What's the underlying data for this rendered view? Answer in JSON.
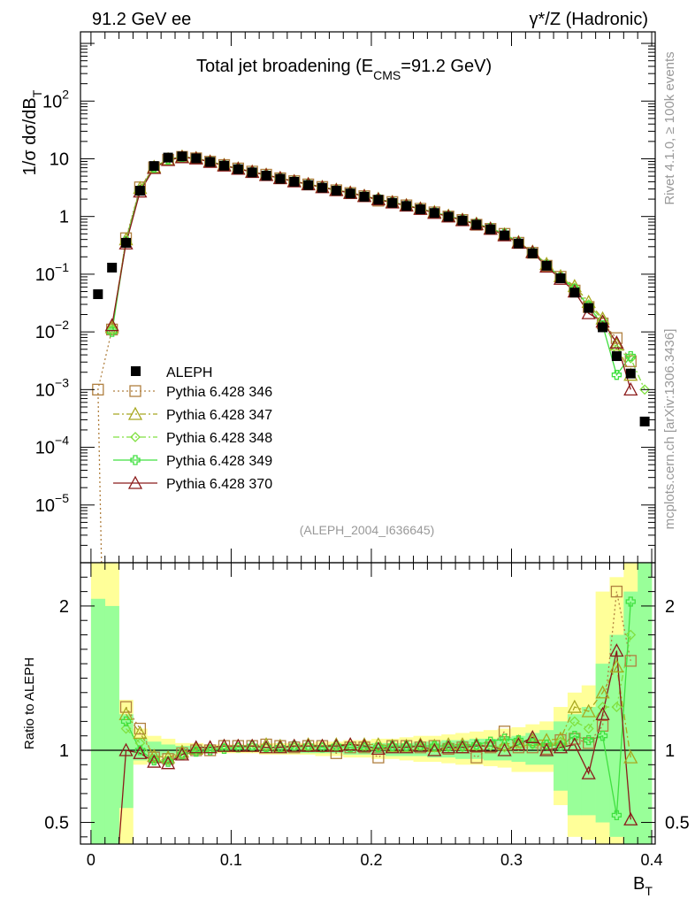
{
  "header": {
    "left": "91.2 GeV ee",
    "right": "γ*/Z (Hadronic)"
  },
  "side": {
    "top": "Rivet 4.1.0, ≥ 100k events",
    "bottom": "mcplots.cern.ch [arXiv:1306.3436]"
  },
  "colors": {
    "data": "#000000",
    "s346": "#b08040",
    "s347": "#a8a820",
    "s348": "#80e040",
    "s349": "#40e040",
    "s370": "#8b1a1a",
    "band_yellow": "#ffff99",
    "band_green": "#99ff99"
  },
  "chart_data": {
    "type": "line",
    "title": "Total jet broadening (E",
    "title_sub": "CMS",
    "title_tail": "=91.2 GeV)",
    "ylabel_main": "1/σ  dσ/dB",
    "ylabel_sub": "T",
    "ylabel_ratio": "Ratio to ALEPH",
    "xlabel": "B",
    "xlabel_sub": "T",
    "analysis_id": "(ALEPH_2004_I636645)",
    "xlim": [
      -0.0075,
      0.4025
    ],
    "main_ylim_log10": [
      -6,
      3.2
    ],
    "ratio_ylim": [
      0.35,
      2.3
    ],
    "x_ticks": [
      {
        "v": 0,
        "label": "0"
      },
      {
        "v": 0.1,
        "label": "0.1"
      },
      {
        "v": 0.2,
        "label": "0.2"
      },
      {
        "v": 0.3,
        "label": "0.3"
      },
      {
        "v": 0.4,
        "label": "0.4"
      }
    ],
    "main_y_ticks": [
      {
        "exp": 2,
        "label": "10",
        "sup": "2"
      },
      {
        "exp": 1,
        "label": "10",
        "sup": ""
      },
      {
        "exp": 0,
        "label": "1",
        "sup": ""
      },
      {
        "exp": -1,
        "label": "10",
        "sup": "−1"
      },
      {
        "exp": -2,
        "label": "10",
        "sup": "−2"
      },
      {
        "exp": -3,
        "label": "10",
        "sup": "−3"
      },
      {
        "exp": -4,
        "label": "10",
        "sup": "−4"
      },
      {
        "exp": -5,
        "label": "10",
        "sup": "−5"
      }
    ],
    "ratio_y_ticks": [
      {
        "v": 0.5,
        "label": "0.5"
      },
      {
        "v": 1,
        "label": "1"
      },
      {
        "v": 2,
        "label": "2"
      }
    ],
    "x": [
      0.005,
      0.015,
      0.025,
      0.035,
      0.045,
      0.055,
      0.065,
      0.075,
      0.085,
      0.095,
      0.105,
      0.115,
      0.125,
      0.135,
      0.145,
      0.155,
      0.165,
      0.175,
      0.185,
      0.195,
      0.205,
      0.215,
      0.225,
      0.235,
      0.245,
      0.255,
      0.265,
      0.275,
      0.285,
      0.295,
      0.305,
      0.315,
      0.325,
      0.335,
      0.345,
      0.355,
      0.365,
      0.375,
      0.385,
      0.395
    ],
    "data_values": [
      0.045,
      0.13,
      0.35,
      2.8,
      7.5,
      10.5,
      11.0,
      10.2,
      8.8,
      7.6,
      6.6,
      5.8,
      5.1,
      4.5,
      4.0,
      3.5,
      3.15,
      2.8,
      2.5,
      2.2,
      1.95,
      1.72,
      1.52,
      1.33,
      1.15,
      0.99,
      0.85,
      0.72,
      0.6,
      0.47,
      0.34,
      0.23,
      0.14,
      0.085,
      0.048,
      0.026,
      0.012,
      0.0038,
      0.0019,
      0.00028
    ],
    "ratio_bands": {
      "yellow_lo": [
        0.2,
        0.2,
        0.25,
        0.9,
        0.92,
        0.95,
        0.97,
        0.97,
        0.98,
        0.98,
        0.98,
        0.98,
        0.97,
        0.97,
        0.97,
        0.97,
        0.96,
        0.96,
        0.95,
        0.95,
        0.94,
        0.94,
        0.93,
        0.92,
        0.92,
        0.91,
        0.9,
        0.9,
        0.89,
        0.88,
        0.85,
        0.85,
        0.85,
        0.62,
        0.4,
        0.38,
        0.35,
        0.3,
        0.3,
        0.3
      ],
      "yellow_hi": [
        2.4,
        2.4,
        1.35,
        1.15,
        1.1,
        1.08,
        1.05,
        1.05,
        1.04,
        1.04,
        1.04,
        1.04,
        1.05,
        1.05,
        1.05,
        1.05,
        1.06,
        1.06,
        1.07,
        1.07,
        1.08,
        1.08,
        1.09,
        1.1,
        1.1,
        1.11,
        1.12,
        1.13,
        1.14,
        1.15,
        1.16,
        1.18,
        1.2,
        1.3,
        1.4,
        1.45,
        2.1,
        2.2,
        2.3,
        2.4
      ],
      "green_lo": [
        0.2,
        0.2,
        0.6,
        0.93,
        0.95,
        0.97,
        0.98,
        0.98,
        0.99,
        0.99,
        0.99,
        0.99,
        0.99,
        0.98,
        0.98,
        0.98,
        0.98,
        0.98,
        0.97,
        0.97,
        0.97,
        0.96,
        0.96,
        0.96,
        0.95,
        0.95,
        0.94,
        0.94,
        0.93,
        0.93,
        0.92,
        0.9,
        0.9,
        0.72,
        0.55,
        0.55,
        0.5,
        0.4,
        0.35,
        0.3
      ],
      "green_hi": [
        2.05,
        2.0,
        1.25,
        1.08,
        1.06,
        1.04,
        1.03,
        1.03,
        1.02,
        1.02,
        1.02,
        1.02,
        1.02,
        1.03,
        1.03,
        1.03,
        1.03,
        1.04,
        1.04,
        1.04,
        1.05,
        1.05,
        1.05,
        1.06,
        1.06,
        1.07,
        1.07,
        1.08,
        1.08,
        1.09,
        1.1,
        1.12,
        1.14,
        1.2,
        1.25,
        1.3,
        1.6,
        1.8,
        2.1,
        2.3
      ]
    },
    "series": [
      {
        "name": "Pythia 6.428 346",
        "key": "s346",
        "marker": "square",
        "dash": "2,3",
        "values": [
          0.001,
          0.011,
          0.42,
          3.2,
          7.1,
          9.6,
          10.8,
          10.2,
          8.9,
          7.8,
          6.8,
          6.0,
          5.3,
          4.6,
          4.1,
          3.6,
          3.25,
          2.85,
          2.55,
          2.25,
          1.88,
          1.78,
          1.56,
          1.36,
          1.18,
          1.0,
          0.87,
          0.72,
          0.61,
          0.5,
          0.35,
          0.235,
          0.14,
          0.09,
          0.052,
          0.027,
          0.014,
          0.0078,
          0.0031,
          null
        ],
        "ratio": [
          null,
          null,
          1.3,
          1.15,
          0.95,
          0.94,
          0.98,
          1.0,
          1.0,
          1.03,
          1.03,
          1.03,
          1.04,
          1.03,
          1.02,
          1.03,
          1.03,
          0.98,
          1.02,
          1.02,
          0.95,
          1.03,
          1.03,
          1.02,
          1.03,
          1.01,
          1.02,
          0.95,
          1.02,
          1.13,
          1.02,
          1.02,
          1.01,
          1.07,
          1.08,
          1.05,
          1.17,
          2.1,
          1.62,
          null
        ]
      },
      {
        "name": "Pythia 6.428 347",
        "key": "s347",
        "marker": "triangle",
        "dash": "7,3,2,3",
        "values": [
          null,
          0.012,
          0.4,
          3.1,
          7.2,
          9.8,
          10.9,
          10.3,
          9.0,
          7.8,
          6.8,
          6.0,
          5.3,
          4.65,
          4.1,
          3.65,
          3.25,
          2.9,
          2.6,
          2.28,
          2.02,
          1.78,
          1.57,
          1.38,
          1.19,
          1.03,
          0.88,
          0.75,
          0.62,
          0.49,
          0.36,
          0.245,
          0.15,
          0.092,
          0.062,
          0.033,
          0.017,
          0.006,
          0.0018,
          null
        ],
        "ratio": [
          null,
          null,
          1.25,
          1.12,
          0.96,
          0.95,
          0.99,
          1.01,
          1.02,
          1.03,
          1.03,
          1.03,
          1.04,
          1.03,
          1.03,
          1.04,
          1.03,
          1.04,
          1.04,
          1.04,
          1.04,
          1.03,
          1.03,
          1.04,
          1.03,
          1.04,
          1.04,
          1.04,
          1.03,
          1.04,
          1.06,
          1.07,
          1.07,
          1.08,
          1.3,
          1.27,
          1.4,
          1.58,
          0.95,
          null
        ]
      },
      {
        "name": "Pythia 6.428 348",
        "key": "s348",
        "marker": "diamond",
        "dash": "7,3,2,3",
        "values": [
          null,
          0.011,
          0.38,
          2.9,
          7.0,
          9.7,
          10.7,
          10.2,
          8.9,
          7.7,
          6.7,
          5.9,
          5.2,
          4.6,
          4.05,
          3.6,
          3.2,
          2.85,
          2.55,
          2.25,
          2.0,
          1.76,
          1.55,
          1.36,
          1.18,
          1.01,
          0.87,
          0.74,
          0.62,
          0.48,
          0.35,
          0.24,
          0.145,
          0.09,
          0.058,
          0.03,
          0.016,
          0.005,
          0.0035,
          0.001
        ],
        "ratio": [
          null,
          null,
          1.15,
          1.05,
          0.94,
          0.93,
          0.98,
          1.0,
          1.01,
          1.02,
          1.02,
          1.02,
          1.02,
          1.02,
          1.02,
          1.02,
          1.02,
          1.02,
          1.02,
          1.02,
          1.02,
          1.02,
          1.02,
          1.02,
          1.02,
          1.02,
          1.02,
          1.03,
          1.03,
          1.02,
          1.03,
          1.04,
          1.04,
          1.06,
          1.2,
          1.15,
          1.3,
          1.3,
          1.8,
          null
        ]
      },
      {
        "name": "Pythia 6.428 349",
        "key": "s349",
        "marker": "cross",
        "dash": "",
        "values": [
          null,
          0.01,
          0.37,
          2.85,
          7.0,
          9.6,
          10.7,
          10.1,
          8.9,
          7.7,
          6.7,
          5.9,
          5.2,
          4.6,
          4.05,
          3.6,
          3.2,
          2.85,
          2.55,
          2.25,
          2.0,
          1.76,
          1.55,
          1.36,
          1.18,
          1.02,
          0.88,
          0.75,
          0.63,
          0.5,
          0.36,
          0.24,
          0.145,
          0.088,
          0.055,
          0.028,
          0.013,
          0.0018,
          0.0038,
          null
        ],
        "ratio": [
          null,
          null,
          1.2,
          1.0,
          0.93,
          0.92,
          0.97,
          0.99,
          1.0,
          1.01,
          1.02,
          1.03,
          1.02,
          1.02,
          1.03,
          1.03,
          1.02,
          1.03,
          1.02,
          1.02,
          1.02,
          1.03,
          1.03,
          1.03,
          1.03,
          1.03,
          1.03,
          1.04,
          1.06,
          1.08,
          1.07,
          1.05,
          1.04,
          1.03,
          1.1,
          1.07,
          1.1,
          0.55,
          2.03,
          null
        ]
      },
      {
        "name": "Pythia 6.428 370",
        "key": "s370",
        "marker": "triangle",
        "dash": "",
        "values": [
          null,
          0.013,
          0.34,
          2.7,
          6.9,
          9.5,
          10.6,
          10.1,
          8.8,
          7.6,
          6.7,
          5.9,
          5.2,
          4.6,
          4.05,
          3.6,
          3.2,
          2.85,
          2.55,
          2.25,
          1.97,
          1.74,
          1.54,
          1.35,
          1.15,
          1.0,
          0.86,
          0.73,
          0.61,
          0.47,
          0.35,
          0.24,
          0.135,
          0.083,
          0.05,
          0.021,
          0.015,
          0.0065,
          0.001,
          null
        ],
        "ratio": [
          null,
          null,
          1.0,
          0.98,
          0.92,
          0.91,
          0.97,
          1.02,
          1.02,
          1.03,
          1.03,
          1.03,
          1.02,
          1.02,
          1.03,
          1.03,
          1.03,
          1.03,
          1.04,
          1.03,
          1.01,
          1.02,
          1.02,
          1.03,
          1.0,
          1.02,
          1.02,
          1.03,
          1.03,
          1.0,
          1.04,
          1.09,
          1.0,
          1.02,
          1.04,
          0.84,
          1.25,
          1.69,
          0.52,
          null
        ]
      }
    ]
  }
}
